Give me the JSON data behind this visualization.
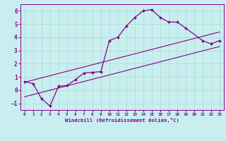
{
  "xlabel": "Windchill (Refroidissement éolien,°C)",
  "bg_color": "#c8eef0",
  "line_color": "#880088",
  "grid_color": "#aaddcc",
  "xlim": [
    -0.5,
    23.5
  ],
  "ylim": [
    -1.5,
    6.5
  ],
  "xticks": [
    0,
    1,
    2,
    3,
    4,
    5,
    6,
    7,
    8,
    9,
    10,
    11,
    12,
    13,
    14,
    15,
    16,
    17,
    18,
    19,
    20,
    21,
    22,
    23
  ],
  "yticks": [
    -1,
    0,
    1,
    2,
    3,
    4,
    5,
    6
  ],
  "curve1_x": [
    0,
    1,
    2,
    3,
    4,
    5,
    6,
    7,
    8,
    9,
    10,
    11,
    12,
    13,
    14,
    15,
    16,
    17,
    18,
    19,
    21,
    22,
    23
  ],
  "curve1_y": [
    0.65,
    0.5,
    -0.65,
    -1.2,
    0.3,
    0.35,
    0.8,
    1.3,
    1.35,
    1.4,
    3.75,
    4.0,
    4.85,
    5.5,
    6.0,
    6.1,
    5.5,
    5.15,
    5.15,
    4.7,
    3.75,
    3.5,
    3.75
  ],
  "line1_x": [
    0,
    23
  ],
  "line1_y": [
    -0.5,
    3.3
  ],
  "line2_x": [
    0,
    23
  ],
  "line2_y": [
    0.6,
    4.4
  ]
}
